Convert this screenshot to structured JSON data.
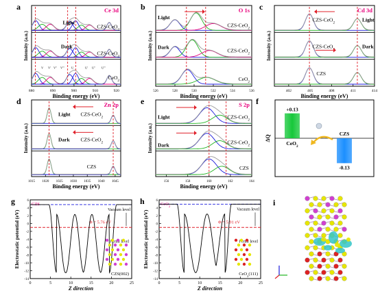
{
  "chart_data": [
    {
      "panel": "a",
      "type": "line",
      "title": "Ce 3d",
      "xlabel": "Binding energy (eV)",
      "ylabel": "Intensity (a.u.)",
      "xlim": [
        880,
        922
      ],
      "reversed_x": false,
      "ticks": [
        880,
        890,
        900,
        910,
        920
      ],
      "tick_labels": [
        "880",
        "890",
        "900",
        "910",
        "920"
      ],
      "labels": [
        "CZS-CeO2",
        "CZS-CeO2",
        "CeO2"
      ],
      "side_labels": [
        "Light",
        "Dark"
      ],
      "peak_labels": [
        "V",
        "V'",
        "V''",
        "V'''",
        "U",
        "U'",
        "U''",
        "U'''"
      ],
      "dashed_refs": [
        881.8,
        897.0,
        900.8
      ]
    },
    {
      "panel": "b",
      "type": "line",
      "title": "O 1s",
      "xlabel": "Binding energy (eV)",
      "ylabel": "Intensity (a.u.)",
      "xlim": [
        526,
        536
      ],
      "reversed_x": false,
      "ticks": [
        526,
        528,
        530,
        532,
        534,
        536
      ],
      "tick_labels": [
        "526",
        "528",
        "530",
        "532",
        "534",
        "536"
      ],
      "labels": [
        "CZS-CeO2",
        "CZS-CeO2",
        "CeO2"
      ],
      "side_labels": [
        "Light",
        "Dark"
      ],
      "dashed_refs": [
        529.2,
        531.2
      ]
    },
    {
      "panel": "c",
      "type": "line",
      "title": "Cd 3d",
      "xlabel": "Binding energy (eV)",
      "ylabel": "Intensity (a.u.)",
      "xlim": [
        400,
        414
      ],
      "reversed_x": false,
      "ticks": [
        402,
        405,
        408,
        411,
        414
      ],
      "tick_labels": [
        "402",
        "405",
        "408",
        "411",
        "414"
      ],
      "labels": [
        "CZS-CeO2",
        "CZS-CeO2",
        "CZS"
      ],
      "side_labels": [
        "Light",
        "Dark"
      ],
      "dashed_refs": [
        404.9,
        411.6
      ]
    },
    {
      "panel": "d",
      "type": "line",
      "title": "Zn 2p",
      "xlabel": "Binding energy (eV)",
      "ylabel": "Intensity (a.u.)",
      "xlim": [
        1015,
        1047
      ],
      "reversed_x": false,
      "ticks": [
        1015,
        1020,
        1025,
        1030,
        1035,
        1040,
        1045
      ],
      "tick_labels": [
        "1015",
        "1020",
        "1025",
        "1030",
        "1035",
        "1040",
        "1045"
      ],
      "labels": [
        "CZS-CeO2",
        "CZS-CeO2",
        "CZS"
      ],
      "side_labels": [
        "Light",
        "Dark"
      ],
      "dashed_refs": [
        1021.3,
        1044.3
      ]
    },
    {
      "panel": "e",
      "type": "line",
      "title": "S 2p",
      "xlabel": "Binding energy (eV)",
      "ylabel": "Intensity (a.u.)",
      "xlim": [
        155,
        164
      ],
      "reversed_x": false,
      "ticks": [
        156,
        158,
        160,
        162,
        164
      ],
      "tick_labels": [
        "156",
        "158",
        "160",
        "162",
        "164"
      ],
      "labels": [
        "CZS-CeO2",
        "CZS-CeO2",
        "CZS"
      ],
      "side_labels": [
        "Light",
        "Dark"
      ],
      "dashed_refs": [
        160.0,
        161.6
      ]
    },
    {
      "panel": "f",
      "type": "bar",
      "ylabel": "ΔQ",
      "categories": [
        "CeO2",
        "CZS"
      ],
      "values": [
        0.13,
        -0.13
      ],
      "value_labels": [
        "+0.13",
        "-0.13"
      ],
      "ylim": [
        -0.2,
        0.2
      ]
    },
    {
      "panel": "g",
      "type": "line",
      "title": "CZS",
      "xlabel": "Z direction",
      "ylabel": "Electrostatic potential (eV)",
      "xlim": [
        0,
        25
      ],
      "ylim": [
        -14,
        6
      ],
      "xticks": [
        0,
        5,
        10,
        15,
        20,
        25
      ],
      "yticks": [
        6,
        4,
        2,
        0,
        -2,
        -4,
        -6,
        -8,
        -10,
        -12,
        -14
      ],
      "vacuum_level": 4.8,
      "fermi_level": -1.0,
      "vacuum_label": "Vacuum level",
      "fermi_label": "Fermi level",
      "annotation": "5.76 eV",
      "slab_label": "CZS(002)"
    },
    {
      "panel": "h",
      "type": "line",
      "title": "CeO2",
      "xlabel": "Z direction",
      "ylabel": "Electrostatic potential (eV)",
      "xlim": [
        0,
        25
      ],
      "ylim": [
        -14,
        6
      ],
      "xticks": [
        0,
        5,
        10,
        15,
        20,
        25
      ],
      "yticks": [
        6,
        4,
        2,
        0,
        -2,
        -4,
        -6,
        -8,
        -10,
        -12,
        -14
      ],
      "vacuum_level": 4.9,
      "fermi_level": -1.0,
      "vacuum_label": "Vacuum level",
      "fermi_label": "Fermi level",
      "annotation": "5.91 eV",
      "slab_label": "CeO2(111)"
    }
  ],
  "panel_letters": [
    "a",
    "b",
    "c",
    "d",
    "e",
    "f",
    "g",
    "h",
    "i"
  ],
  "phi_symbol": "Φ =",
  "colors": {
    "accent": "#e8007c",
    "blue": "#1a1adc",
    "green": "#1fb31f",
    "red": "#e0202a",
    "grey": "#9a9a9a",
    "gold": "#f0b820",
    "bar_green": "#16c83a",
    "bar_blue": "#1b8fff",
    "cyan_iso": "#33c6c8",
    "yellow_atom": "#e6e600",
    "magenta_atom": "#d040d0",
    "red_atom": "#dd2222"
  }
}
